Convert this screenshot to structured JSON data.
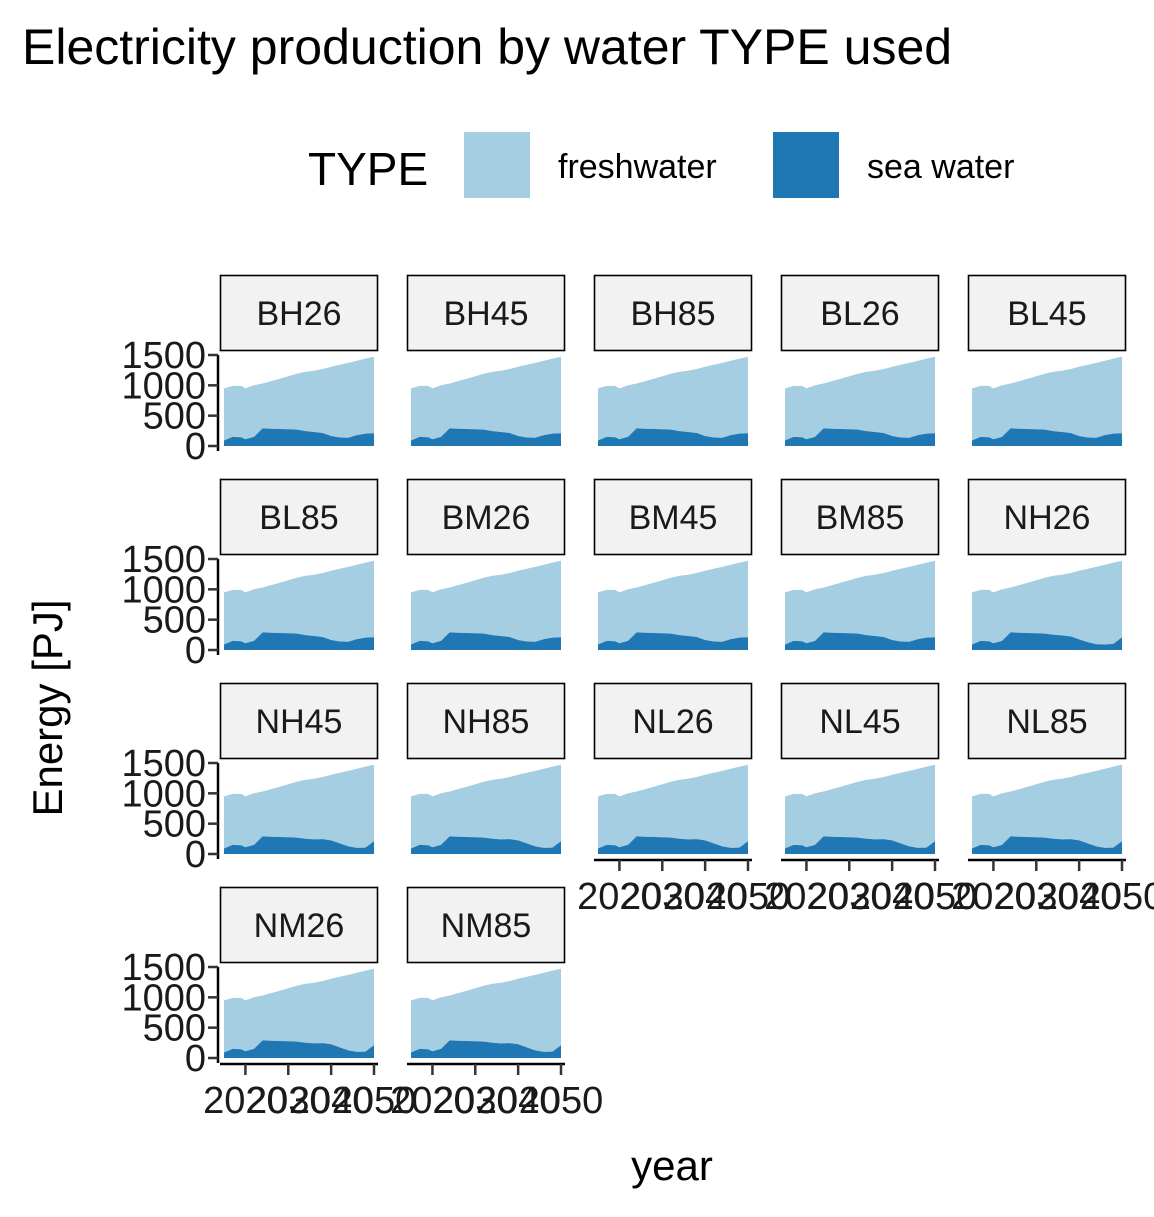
{
  "chart_data": {
    "type": "area",
    "stacked": true,
    "title": "Electricity production by water TYPE used",
    "xlabel": "year",
    "ylabel": "Energy [PJ]",
    "legend": {
      "title": "TYPE",
      "position": "top",
      "entries": [
        {
          "name": "freshwater",
          "color": "#a6cee3"
        },
        {
          "name": "sea water",
          "color": "#1f78b4"
        }
      ]
    },
    "xlim": [
      2015,
      2050
    ],
    "ylim": [
      0,
      1500
    ],
    "x_ticks": [
      2020,
      2030,
      2040,
      2050
    ],
    "y_ticks": [
      0,
      500,
      1000,
      1500
    ],
    "grid": false,
    "x": [
      2015,
      2017,
      2019,
      2020,
      2022,
      2024,
      2026,
      2028,
      2030,
      2032,
      2034,
      2036,
      2038,
      2040,
      2042,
      2044,
      2046,
      2048,
      2050
    ],
    "panels": [
      {
        "name": "BH26",
        "series": [
          {
            "name": "sea water",
            "values": [
              90,
              150,
              145,
              110,
              150,
              290,
              285,
              280,
              275,
              270,
              245,
              230,
              215,
              165,
              140,
              135,
              180,
              205,
              210
            ]
          },
          {
            "name": "freshwater",
            "values": [
              860,
              840,
              845,
              840,
              850,
              740,
              785,
              830,
              875,
              920,
              980,
              1010,
              1055,
              1140,
              1200,
              1235,
              1225,
              1235,
              1260
            ]
          }
        ]
      },
      {
        "name": "BH45",
        "series": [
          {
            "name": "sea water",
            "values": [
              90,
              150,
              145,
              110,
              150,
              290,
              285,
              280,
              275,
              270,
              245,
              230,
              215,
              165,
              140,
              135,
              180,
              205,
              210
            ]
          },
          {
            "name": "freshwater",
            "values": [
              860,
              840,
              845,
              840,
              850,
              740,
              785,
              830,
              875,
              920,
              980,
              1010,
              1055,
              1140,
              1200,
              1235,
              1225,
              1235,
              1260
            ]
          }
        ]
      },
      {
        "name": "BH85",
        "series": [
          {
            "name": "sea water",
            "values": [
              90,
              150,
              145,
              110,
              150,
              290,
              285,
              280,
              275,
              270,
              245,
              230,
              215,
              165,
              140,
              135,
              180,
              205,
              210
            ]
          },
          {
            "name": "freshwater",
            "values": [
              860,
              840,
              845,
              840,
              850,
              740,
              785,
              830,
              875,
              920,
              980,
              1010,
              1055,
              1140,
              1200,
              1235,
              1225,
              1235,
              1260
            ]
          }
        ]
      },
      {
        "name": "BL26",
        "series": [
          {
            "name": "sea water",
            "values": [
              90,
              150,
              145,
              110,
              150,
              290,
              285,
              280,
              275,
              270,
              245,
              230,
              215,
              165,
              140,
              135,
              180,
              205,
              210
            ]
          },
          {
            "name": "freshwater",
            "values": [
              860,
              840,
              845,
              840,
              850,
              740,
              785,
              830,
              875,
              920,
              980,
              1010,
              1055,
              1140,
              1200,
              1235,
              1225,
              1235,
              1260
            ]
          }
        ]
      },
      {
        "name": "BL45",
        "series": [
          {
            "name": "sea water",
            "values": [
              90,
              150,
              145,
              110,
              150,
              290,
              285,
              280,
              275,
              270,
              245,
              230,
              215,
              165,
              140,
              135,
              180,
              205,
              210
            ]
          },
          {
            "name": "freshwater",
            "values": [
              860,
              840,
              845,
              840,
              850,
              740,
              785,
              830,
              875,
              920,
              980,
              1010,
              1055,
              1140,
              1200,
              1235,
              1225,
              1235,
              1260
            ]
          }
        ]
      },
      {
        "name": "BL85",
        "series": [
          {
            "name": "sea water",
            "values": [
              90,
              150,
              145,
              110,
              150,
              290,
              285,
              280,
              275,
              270,
              245,
              230,
              215,
              165,
              140,
              135,
              180,
              205,
              210
            ]
          },
          {
            "name": "freshwater",
            "values": [
              860,
              840,
              845,
              840,
              850,
              740,
              785,
              830,
              875,
              920,
              980,
              1010,
              1055,
              1140,
              1200,
              1235,
              1225,
              1235,
              1260
            ]
          }
        ]
      },
      {
        "name": "BM26",
        "series": [
          {
            "name": "sea water",
            "values": [
              90,
              150,
              145,
              110,
              150,
              290,
              285,
              280,
              275,
              270,
              245,
              230,
              215,
              165,
              140,
              135,
              180,
              205,
              210
            ]
          },
          {
            "name": "freshwater",
            "values": [
              860,
              840,
              845,
              840,
              850,
              740,
              785,
              830,
              875,
              920,
              980,
              1010,
              1055,
              1140,
              1200,
              1235,
              1225,
              1235,
              1260
            ]
          }
        ]
      },
      {
        "name": "BM45",
        "series": [
          {
            "name": "sea water",
            "values": [
              90,
              150,
              145,
              110,
              150,
              290,
              285,
              280,
              275,
              270,
              245,
              230,
              215,
              165,
              140,
              135,
              180,
              205,
              210
            ]
          },
          {
            "name": "freshwater",
            "values": [
              860,
              840,
              845,
              840,
              850,
              740,
              785,
              830,
              875,
              920,
              980,
              1010,
              1055,
              1140,
              1200,
              1235,
              1225,
              1235,
              1260
            ]
          }
        ]
      },
      {
        "name": "BM85",
        "series": [
          {
            "name": "sea water",
            "values": [
              90,
              150,
              145,
              110,
              150,
              290,
              285,
              280,
              275,
              270,
              245,
              230,
              215,
              165,
              140,
              135,
              180,
              205,
              210
            ]
          },
          {
            "name": "freshwater",
            "values": [
              860,
              840,
              845,
              840,
              850,
              740,
              785,
              830,
              875,
              920,
              980,
              1010,
              1055,
              1140,
              1200,
              1235,
              1225,
              1235,
              1260
            ]
          }
        ]
      },
      {
        "name": "NH26",
        "series": [
          {
            "name": "sea water",
            "values": [
              90,
              150,
              145,
              110,
              150,
              290,
              285,
              280,
              275,
              270,
              250,
              240,
              225,
              175,
              130,
              95,
              90,
              100,
              210
            ]
          },
          {
            "name": "freshwater",
            "values": [
              860,
              840,
              845,
              840,
              850,
              740,
              785,
              830,
              875,
              920,
              975,
              1000,
              1045,
              1130,
              1210,
              1275,
              1315,
              1340,
              1260
            ]
          }
        ]
      },
      {
        "name": "NH45",
        "series": [
          {
            "name": "sea water",
            "values": [
              90,
              150,
              145,
              110,
              150,
              290,
              285,
              280,
              275,
              270,
              250,
              240,
              245,
              225,
              175,
              125,
              100,
              105,
              210
            ]
          },
          {
            "name": "freshwater",
            "values": [
              860,
              840,
              845,
              840,
              850,
              740,
              785,
              830,
              875,
              920,
              975,
              1000,
              1025,
              1080,
              1165,
              1245,
              1305,
              1335,
              1260
            ]
          }
        ]
      },
      {
        "name": "NH85",
        "series": [
          {
            "name": "sea water",
            "values": [
              90,
              150,
              145,
              110,
              150,
              290,
              285,
              280,
              275,
              270,
              250,
              240,
              245,
              225,
              175,
              125,
              100,
              105,
              210
            ]
          },
          {
            "name": "freshwater",
            "values": [
              860,
              840,
              845,
              840,
              850,
              740,
              785,
              830,
              875,
              920,
              975,
              1000,
              1025,
              1080,
              1165,
              1245,
              1305,
              1335,
              1260
            ]
          }
        ]
      },
      {
        "name": "NL26",
        "series": [
          {
            "name": "sea water",
            "values": [
              90,
              150,
              145,
              110,
              150,
              290,
              285,
              280,
              275,
              270,
              250,
              240,
              245,
              225,
              175,
              125,
              100,
              105,
              210
            ]
          },
          {
            "name": "freshwater",
            "values": [
              860,
              840,
              845,
              840,
              850,
              740,
              785,
              830,
              875,
              920,
              975,
              1000,
              1025,
              1080,
              1165,
              1245,
              1305,
              1335,
              1260
            ]
          }
        ]
      },
      {
        "name": "NL45",
        "series": [
          {
            "name": "sea water",
            "values": [
              90,
              150,
              145,
              110,
              150,
              290,
              285,
              280,
              275,
              270,
              250,
              240,
              245,
              225,
              175,
              125,
              100,
              105,
              210
            ]
          },
          {
            "name": "freshwater",
            "values": [
              860,
              840,
              845,
              840,
              850,
              740,
              785,
              830,
              875,
              920,
              975,
              1000,
              1025,
              1080,
              1165,
              1245,
              1305,
              1335,
              1260
            ]
          }
        ]
      },
      {
        "name": "NL85",
        "series": [
          {
            "name": "sea water",
            "values": [
              90,
              150,
              145,
              110,
              150,
              290,
              285,
              280,
              275,
              270,
              250,
              240,
              245,
              225,
              175,
              125,
              100,
              105,
              210
            ]
          },
          {
            "name": "freshwater",
            "values": [
              860,
              840,
              845,
              840,
              850,
              740,
              785,
              830,
              875,
              920,
              975,
              1000,
              1025,
              1080,
              1165,
              1245,
              1305,
              1335,
              1260
            ]
          }
        ]
      },
      {
        "name": "NM26",
        "series": [
          {
            "name": "sea water",
            "values": [
              90,
              150,
              145,
              110,
              150,
              290,
              285,
              280,
              275,
              270,
              250,
              240,
              245,
              225,
              175,
              125,
              100,
              105,
              210
            ]
          },
          {
            "name": "freshwater",
            "values": [
              860,
              840,
              845,
              840,
              850,
              740,
              785,
              830,
              875,
              920,
              975,
              1000,
              1025,
              1080,
              1165,
              1245,
              1305,
              1335,
              1260
            ]
          }
        ]
      },
      {
        "name": "NM85",
        "series": [
          {
            "name": "sea water",
            "values": [
              90,
              150,
              145,
              110,
              150,
              290,
              285,
              280,
              275,
              270,
              250,
              240,
              245,
              225,
              175,
              125,
              100,
              105,
              210
            ]
          },
          {
            "name": "freshwater",
            "values": [
              860,
              840,
              845,
              840,
              850,
              740,
              785,
              830,
              875,
              920,
              975,
              1000,
              1025,
              1080,
              1165,
              1245,
              1305,
              1335,
              1260
            ]
          }
        ]
      }
    ]
  }
}
